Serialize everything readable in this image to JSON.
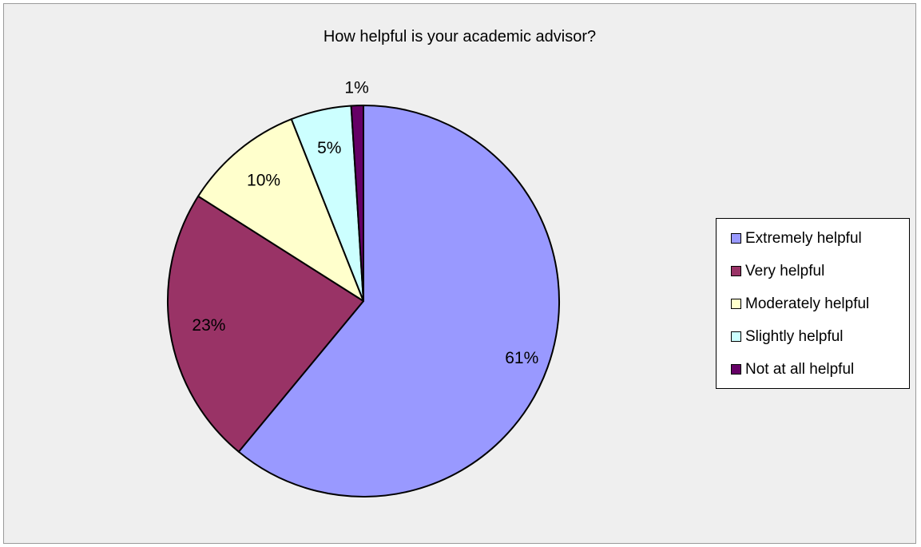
{
  "chart_data": {
    "type": "pie",
    "title": "How helpful is your academic advisor?",
    "categories": [
      "Extremely helpful",
      "Very helpful",
      "Moderately helpful",
      "Slightly helpful",
      "Not at all helpful"
    ],
    "values": [
      61,
      23,
      10,
      5,
      1
    ],
    "labels": [
      "61%",
      "23%",
      "10%",
      "5%",
      "1%"
    ],
    "colors": [
      "#9999ff",
      "#993366",
      "#ffffcc",
      "#ccffff",
      "#660066"
    ],
    "legend_position": "right",
    "start_angle_deg": 0,
    "direction": "clockwise"
  }
}
